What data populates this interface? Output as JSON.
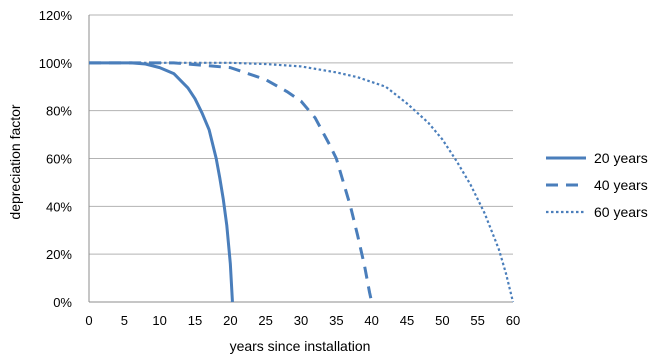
{
  "chart_data": {
    "type": "line",
    "xlabel": "years since installation",
    "ylabel": "depreciation factor",
    "xlim": [
      0,
      60
    ],
    "ylim": [
      0,
      1.2
    ],
    "x_ticks": [
      "0",
      "5",
      "10",
      "15",
      "20",
      "25",
      "30",
      "35",
      "40",
      "45",
      "50",
      "55",
      "60"
    ],
    "y_ticks": [
      "0%",
      "20%",
      "40%",
      "60%",
      "80%",
      "100%",
      "120%"
    ],
    "grid": "horizontal",
    "legend_position": "right",
    "series": [
      {
        "name": "20 years",
        "style": "solid",
        "color": "#4a7ebb",
        "points": [
          [
            0,
            1.0
          ],
          [
            6,
            1.0
          ],
          [
            8,
            0.995
          ],
          [
            10,
            0.98
          ],
          [
            12,
            0.955
          ],
          [
            14,
            0.895
          ],
          [
            15,
            0.85
          ],
          [
            16,
            0.79
          ],
          [
            17,
            0.72
          ],
          [
            18,
            0.6
          ],
          [
            18.5,
            0.52
          ],
          [
            19,
            0.43
          ],
          [
            19.5,
            0.32
          ],
          [
            20,
            0.16
          ],
          [
            20.3,
            0.0
          ]
        ]
      },
      {
        "name": "40 years",
        "style": "dashed",
        "color": "#4a7ebb",
        "points": [
          [
            0,
            1.0
          ],
          [
            8,
            1.0
          ],
          [
            12,
            1.0
          ],
          [
            16,
            0.99
          ],
          [
            20,
            0.98
          ],
          [
            22,
            0.96
          ],
          [
            25,
            0.93
          ],
          [
            28,
            0.88
          ],
          [
            30,
            0.84
          ],
          [
            32,
            0.77
          ],
          [
            34,
            0.66
          ],
          [
            35,
            0.6
          ],
          [
            36,
            0.5
          ],
          [
            37,
            0.4
          ],
          [
            38,
            0.28
          ],
          [
            39,
            0.15
          ],
          [
            39.7,
            0.04
          ],
          [
            40,
            0.0
          ]
        ]
      },
      {
        "name": "60 years",
        "style": "dotted",
        "color": "#4a7ebb",
        "points": [
          [
            0,
            1.0
          ],
          [
            10,
            1.0
          ],
          [
            20,
            1.0
          ],
          [
            25,
            0.995
          ],
          [
            30,
            0.985
          ],
          [
            35,
            0.96
          ],
          [
            38,
            0.94
          ],
          [
            42,
            0.9
          ],
          [
            45,
            0.83
          ],
          [
            48,
            0.75
          ],
          [
            50,
            0.68
          ],
          [
            52,
            0.59
          ],
          [
            54,
            0.49
          ],
          [
            56,
            0.37
          ],
          [
            58,
            0.22
          ],
          [
            59,
            0.12
          ],
          [
            60,
            0.0
          ]
        ]
      }
    ]
  }
}
